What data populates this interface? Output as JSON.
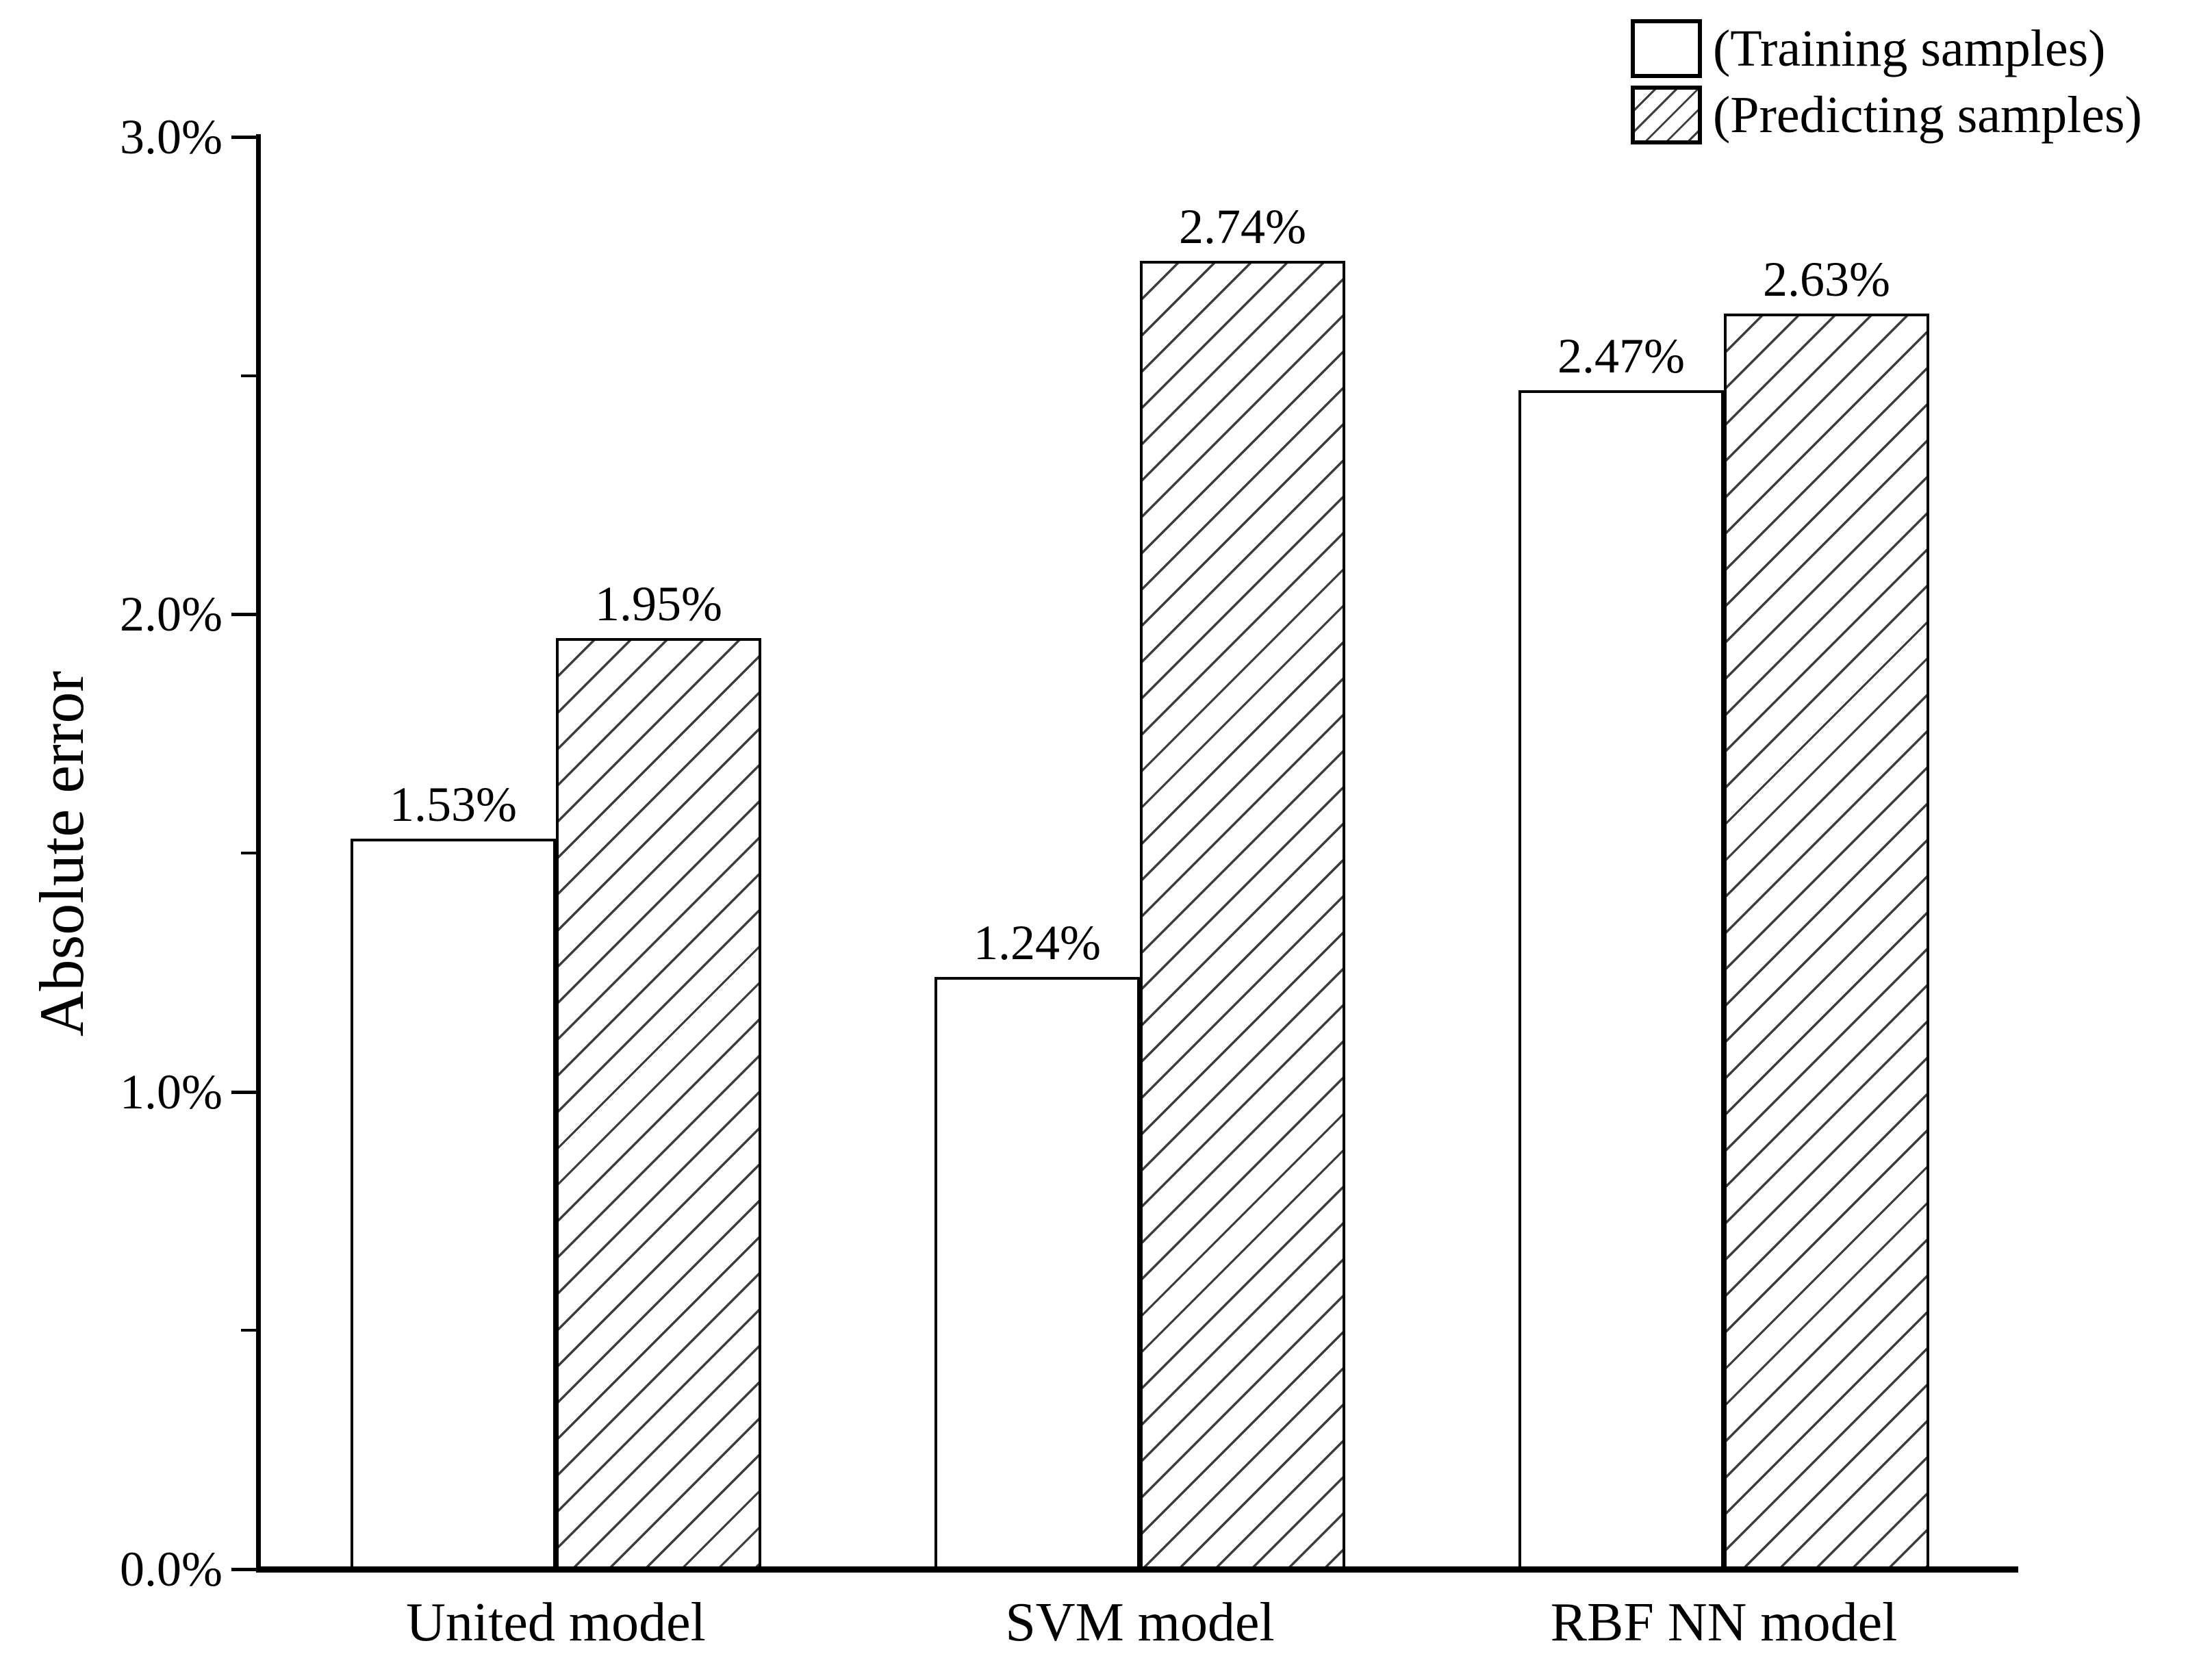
{
  "figure": {
    "ylabel": "Absolute error"
  },
  "chart_data": {
    "type": "bar",
    "categories": [
      "United model",
      "SVM model",
      "RBF NN model"
    ],
    "series": [
      {
        "name": "(Training samples)",
        "style": "white",
        "values": [
          1.53,
          1.24,
          2.47
        ],
        "data_labels": [
          "1.53%",
          "1.24%",
          "2.47%"
        ]
      },
      {
        "name": "(Predicting samples)",
        "style": "hatched",
        "values": [
          1.95,
          2.74,
          2.63
        ],
        "data_labels": [
          "1.95%",
          "2.74%",
          "2.63%"
        ]
      }
    ],
    "ylabel": "Absolute error",
    "xlabel": "",
    "ylim": [
      0,
      3
    ],
    "yticks": [
      {
        "value": 0,
        "label": "0.0%"
      },
      {
        "value": 1,
        "label": "1.0%"
      },
      {
        "value": 2,
        "label": "2.0%"
      },
      {
        "value": 3,
        "label": "3.0%"
      }
    ],
    "yticks_minor": [
      0.5,
      1.5,
      2.5
    ],
    "grid": false,
    "legend_position": "top-right",
    "colors": {
      "foreground": "#000000",
      "background": "#ffffff",
      "hatch_line": "#3d3d3d"
    }
  }
}
